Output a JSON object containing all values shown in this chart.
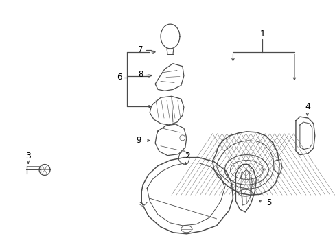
{
  "bg_color": "#ffffff",
  "line_color": "#4a4a4a",
  "text_color": "#000000",
  "label_fontsize": 8.5,
  "fig_width": 4.89,
  "fig_height": 3.6,
  "dpi": 100
}
